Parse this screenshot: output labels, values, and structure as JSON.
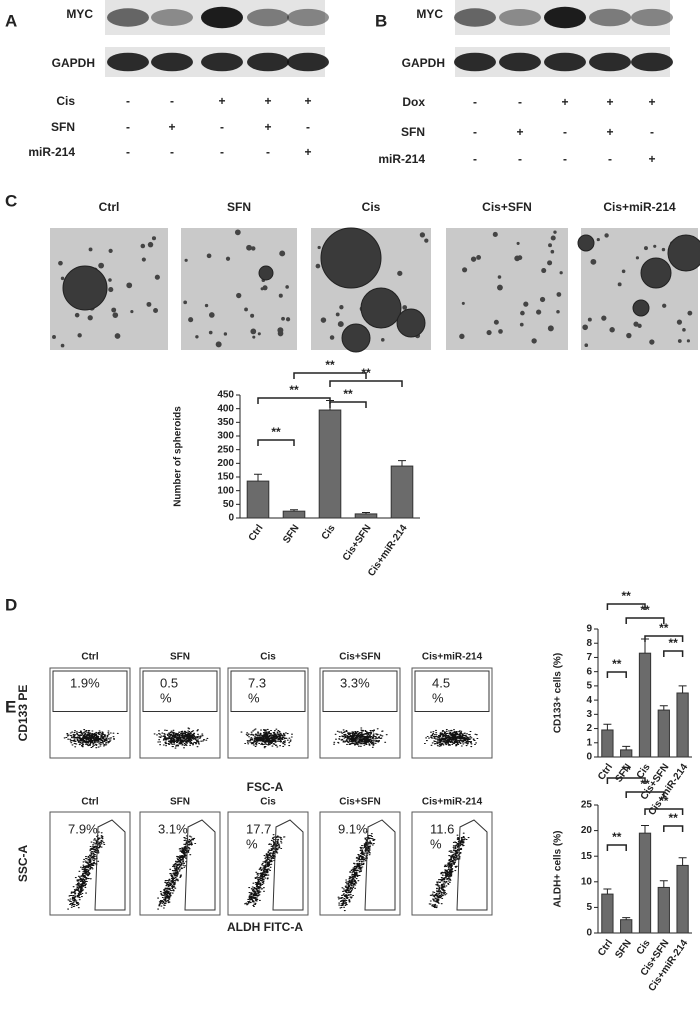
{
  "panel_a": {
    "letter": "A",
    "blots": [
      "MYC",
      "GAPDH"
    ],
    "rows": [
      {
        "label": "Cis",
        "marks": [
          "-",
          "-",
          "+",
          "+",
          "+"
        ]
      },
      {
        "label": "SFN",
        "marks": [
          "-",
          "+",
          "-",
          "+",
          "-"
        ]
      },
      {
        "label": "miR-214",
        "marks": [
          "-",
          "-",
          "-",
          "-",
          "+"
        ]
      }
    ]
  },
  "panel_b": {
    "letter": "B",
    "blots": [
      "MYC",
      "GAPDH"
    ],
    "rows": [
      {
        "label": "Dox",
        "marks": [
          "-",
          "-",
          "+",
          "+",
          "+"
        ]
      },
      {
        "label": "SFN",
        "marks": [
          "-",
          "+",
          "-",
          "+",
          "-"
        ]
      },
      {
        "label": "miR-214",
        "marks": [
          "-",
          "-",
          "-",
          "-",
          "+"
        ]
      }
    ]
  },
  "panel_c": {
    "letter": "C",
    "images": [
      "Ctrl",
      "SFN",
      "Cis",
      "Cis+SFN",
      "Cis+miR-214"
    ]
  },
  "panel_d": {
    "letter": "D",
    "y_label": "CD133 PE",
    "x_label": "FSC-A",
    "plots": [
      {
        "title": "Ctrl",
        "gate": [
          "1.9%"
        ]
      },
      {
        "title": "SFN",
        "gate": [
          "0.5",
          "%"
        ]
      },
      {
        "title": "Cis",
        "gate": [
          "7.3",
          "%"
        ]
      },
      {
        "title": "Cis+SFN",
        "gate": [
          "3.3%"
        ]
      },
      {
        "title": "Cis+miR-214",
        "gate": [
          "4.5",
          "%"
        ]
      }
    ]
  },
  "panel_e": {
    "letter": "E",
    "y_label": "SSC-A",
    "x_label": "ALDH   FITC-A",
    "plots": [
      {
        "title": "Ctrl",
        "gate": [
          "7.9%"
        ]
      },
      {
        "title": "SFN",
        "gate": [
          "3.1%"
        ]
      },
      {
        "title": "Cis",
        "gate": [
          "17.7",
          "%"
        ]
      },
      {
        "title": "Cis+SFN",
        "gate": [
          "9.1%"
        ]
      },
      {
        "title": "Cis+miR-214",
        "gate": [
          "11.6",
          "%"
        ]
      }
    ]
  },
  "chart_data": [
    {
      "type": "bar",
      "y_label": "Number of spheroids",
      "categories": [
        "Ctrl",
        "SFN",
        "Cis",
        "Cis+SFN",
        "Cis+miR-214"
      ],
      "values": [
        135,
        25,
        395,
        15,
        190
      ],
      "errors": [
        25,
        5,
        35,
        5,
        20
      ],
      "color": "#6b6b6b",
      "ylim": [
        0,
        450
      ],
      "yticks": [
        0,
        50,
        100,
        150,
        200,
        250,
        300,
        350,
        400,
        450
      ],
      "brackets": [
        {
          "label": "**",
          "pair": [
            0,
            1
          ]
        },
        {
          "label": "**",
          "pair": [
            0,
            2
          ]
        },
        {
          "label": "**",
          "pair": [
            1,
            3
          ]
        },
        {
          "label": "**",
          "pair": [
            2,
            3
          ]
        },
        {
          "label": "**",
          "pair": [
            2,
            4
          ]
        }
      ]
    },
    {
      "type": "bar",
      "y_label": "CD133+ cells (%)",
      "categories": [
        "Ctrl",
        "SFN",
        "Cis",
        "Cis+SFN",
        "Cis+miR-214"
      ],
      "values": [
        1.9,
        0.5,
        7.3,
        3.3,
        4.5
      ],
      "errors": [
        0.4,
        0.25,
        1,
        0.3,
        0.5
      ],
      "color": "#6b6b6b",
      "ylim": [
        0,
        9
      ],
      "yticks": [
        0,
        1,
        2,
        3,
        4,
        5,
        6,
        7,
        8,
        9
      ],
      "brackets": [
        {
          "label": "**",
          "pair": [
            0,
            1
          ]
        },
        {
          "label": "**",
          "pair": [
            0,
            2
          ]
        },
        {
          "label": "**",
          "pair": [
            1,
            3
          ]
        },
        {
          "label": "**",
          "pair": [
            2,
            4
          ]
        },
        {
          "label": "**",
          "pair": [
            3,
            4
          ]
        }
      ]
    },
    {
      "type": "bar",
      "y_label": "ALDH+ cells (%)",
      "categories": [
        "Ctrl",
        "SFN",
        "Cis",
        "Cis+SFN",
        "Cis+miR-214"
      ],
      "values": [
        7.6,
        2.6,
        19.5,
        8.9,
        13.2
      ],
      "errors": [
        1,
        0.4,
        1.5,
        1.3,
        1.5
      ],
      "color": "#6b6b6b",
      "ylim": [
        0,
        25
      ],
      "yticks": [
        0,
        5,
        10,
        15,
        20,
        25
      ],
      "brackets": [
        {
          "label": "**",
          "pair": [
            0,
            1
          ]
        },
        {
          "label": "**",
          "pair": [
            0,
            2
          ]
        },
        {
          "label": "**",
          "pair": [
            1,
            3
          ]
        },
        {
          "label": "**",
          "pair": [
            2,
            4
          ]
        },
        {
          "label": "**",
          "pair": [
            3,
            4
          ]
        }
      ]
    }
  ]
}
